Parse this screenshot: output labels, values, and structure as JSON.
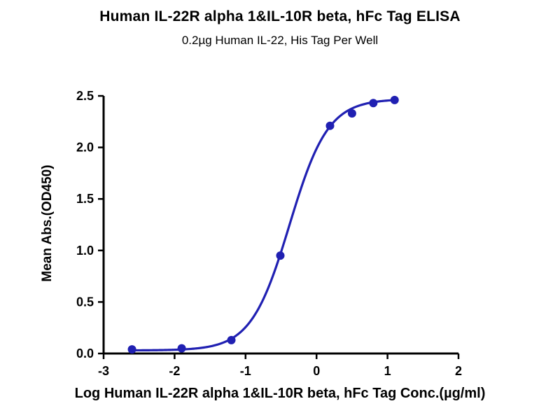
{
  "chart_data": {
    "type": "scatter",
    "title": "Human IL-22R alpha 1&IL-10R beta, hFc Tag ELISA",
    "subtitle": "0.2µg Human IL-22, His Tag Per Well",
    "xlabel": "Log Human IL-22R alpha 1&IL-10R beta, hFc Tag Conc.(µg/ml)",
    "ylabel": "Mean Abs.(OD450)",
    "xlim": [
      -3,
      2
    ],
    "ylim": [
      0,
      2.5
    ],
    "xticks": [
      "-3",
      "-2",
      "-1",
      "0",
      "1",
      "2"
    ],
    "yticks": [
      "0.0",
      "0.5",
      "1.0",
      "1.5",
      "2.0",
      "2.5"
    ],
    "grid": false,
    "legend": null,
    "points": [
      {
        "x": -2.6,
        "y": 0.04
      },
      {
        "x": -1.9,
        "y": 0.05
      },
      {
        "x": -1.2,
        "y": 0.13
      },
      {
        "x": -0.51,
        "y": 0.95
      },
      {
        "x": 0.19,
        "y": 2.21
      },
      {
        "x": 0.5,
        "y": 2.33
      },
      {
        "x": 0.8,
        "y": 2.43
      },
      {
        "x": 1.1,
        "y": 2.46
      }
    ],
    "fit": {
      "model": "4PL",
      "bottom": 0.03,
      "top": 2.47,
      "logEC50": -0.38,
      "hillslope": 1.6
    },
    "colors": {
      "series": "#2020B2",
      "axis": "#000000"
    }
  }
}
